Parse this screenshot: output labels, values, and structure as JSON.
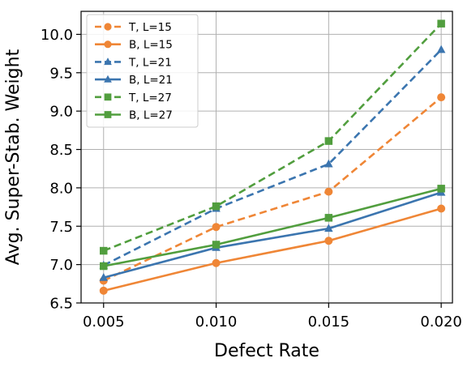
{
  "chart_data": {
    "type": "line",
    "title": "",
    "xlabel": "Defect Rate",
    "ylabel": "Avg. Super-Stab. Weight",
    "x": [
      0.005,
      0.01,
      0.015,
      0.02
    ],
    "x_ticks": [
      "0.005",
      "0.010",
      "0.015",
      "0.020"
    ],
    "y_ticks": [
      "6.5",
      "7.0",
      "7.5",
      "8.0",
      "8.5",
      "9.0",
      "9.5",
      "10.0"
    ],
    "xlim": [
      0.004,
      0.0205
    ],
    "ylim": [
      6.5,
      10.3
    ],
    "grid": true,
    "legend_position": "upper-left",
    "series": [
      {
        "name": "T, L=15",
        "values": [
          6.79,
          7.49,
          7.95,
          9.18
        ],
        "color": "#ef8636",
        "linestyle": "dashed",
        "marker": "circle"
      },
      {
        "name": "B, L=15",
        "values": [
          6.66,
          7.02,
          7.31,
          7.73
        ],
        "color": "#ef8636",
        "linestyle": "solid",
        "marker": "circle"
      },
      {
        "name": "T, L=21",
        "values": [
          6.99,
          7.73,
          8.31,
          9.8
        ],
        "color": "#3b75af",
        "linestyle": "dashed",
        "marker": "triangle"
      },
      {
        "name": "B, L=21",
        "values": [
          6.83,
          7.22,
          7.47,
          7.94
        ],
        "color": "#3b75af",
        "linestyle": "solid",
        "marker": "triangle"
      },
      {
        "name": "T, L=27",
        "values": [
          7.18,
          7.76,
          8.61,
          10.14
        ],
        "color": "#519e3e",
        "linestyle": "dashed",
        "marker": "square"
      },
      {
        "name": "B, L=27",
        "values": [
          6.98,
          7.26,
          7.61,
          7.99
        ],
        "color": "#519e3e",
        "linestyle": "solid",
        "marker": "square"
      }
    ]
  }
}
